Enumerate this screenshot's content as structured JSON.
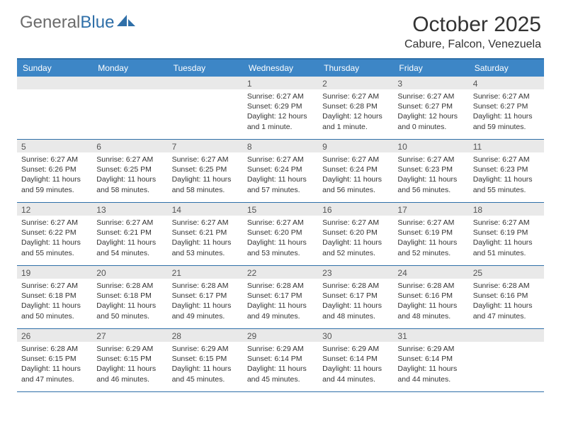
{
  "brand": {
    "part1": "General",
    "part2": "Blue"
  },
  "title": "October 2025",
  "location": "Cabure, Falcon, Venezuela",
  "colors": {
    "header_bg": "#3d86c6",
    "border": "#2f6fa8",
    "daynum_bg": "#e9e9e9",
    "text": "#333333",
    "logo_grey": "#6b6b6b",
    "logo_blue": "#2f6fa8"
  },
  "dow": [
    "Sunday",
    "Monday",
    "Tuesday",
    "Wednesday",
    "Thursday",
    "Friday",
    "Saturday"
  ],
  "weeks": [
    [
      {
        "n": "",
        "sr": "",
        "ss": "",
        "dl": ""
      },
      {
        "n": "",
        "sr": "",
        "ss": "",
        "dl": ""
      },
      {
        "n": "",
        "sr": "",
        "ss": "",
        "dl": ""
      },
      {
        "n": "1",
        "sr": "Sunrise: 6:27 AM",
        "ss": "Sunset: 6:29 PM",
        "dl": "Daylight: 12 hours and 1 minute."
      },
      {
        "n": "2",
        "sr": "Sunrise: 6:27 AM",
        "ss": "Sunset: 6:28 PM",
        "dl": "Daylight: 12 hours and 1 minute."
      },
      {
        "n": "3",
        "sr": "Sunrise: 6:27 AM",
        "ss": "Sunset: 6:27 PM",
        "dl": "Daylight: 12 hours and 0 minutes."
      },
      {
        "n": "4",
        "sr": "Sunrise: 6:27 AM",
        "ss": "Sunset: 6:27 PM",
        "dl": "Daylight: 11 hours and 59 minutes."
      }
    ],
    [
      {
        "n": "5",
        "sr": "Sunrise: 6:27 AM",
        "ss": "Sunset: 6:26 PM",
        "dl": "Daylight: 11 hours and 59 minutes."
      },
      {
        "n": "6",
        "sr": "Sunrise: 6:27 AM",
        "ss": "Sunset: 6:25 PM",
        "dl": "Daylight: 11 hours and 58 minutes."
      },
      {
        "n": "7",
        "sr": "Sunrise: 6:27 AM",
        "ss": "Sunset: 6:25 PM",
        "dl": "Daylight: 11 hours and 58 minutes."
      },
      {
        "n": "8",
        "sr": "Sunrise: 6:27 AM",
        "ss": "Sunset: 6:24 PM",
        "dl": "Daylight: 11 hours and 57 minutes."
      },
      {
        "n": "9",
        "sr": "Sunrise: 6:27 AM",
        "ss": "Sunset: 6:24 PM",
        "dl": "Daylight: 11 hours and 56 minutes."
      },
      {
        "n": "10",
        "sr": "Sunrise: 6:27 AM",
        "ss": "Sunset: 6:23 PM",
        "dl": "Daylight: 11 hours and 56 minutes."
      },
      {
        "n": "11",
        "sr": "Sunrise: 6:27 AM",
        "ss": "Sunset: 6:23 PM",
        "dl": "Daylight: 11 hours and 55 minutes."
      }
    ],
    [
      {
        "n": "12",
        "sr": "Sunrise: 6:27 AM",
        "ss": "Sunset: 6:22 PM",
        "dl": "Daylight: 11 hours and 55 minutes."
      },
      {
        "n": "13",
        "sr": "Sunrise: 6:27 AM",
        "ss": "Sunset: 6:21 PM",
        "dl": "Daylight: 11 hours and 54 minutes."
      },
      {
        "n": "14",
        "sr": "Sunrise: 6:27 AM",
        "ss": "Sunset: 6:21 PM",
        "dl": "Daylight: 11 hours and 53 minutes."
      },
      {
        "n": "15",
        "sr": "Sunrise: 6:27 AM",
        "ss": "Sunset: 6:20 PM",
        "dl": "Daylight: 11 hours and 53 minutes."
      },
      {
        "n": "16",
        "sr": "Sunrise: 6:27 AM",
        "ss": "Sunset: 6:20 PM",
        "dl": "Daylight: 11 hours and 52 minutes."
      },
      {
        "n": "17",
        "sr": "Sunrise: 6:27 AM",
        "ss": "Sunset: 6:19 PM",
        "dl": "Daylight: 11 hours and 52 minutes."
      },
      {
        "n": "18",
        "sr": "Sunrise: 6:27 AM",
        "ss": "Sunset: 6:19 PM",
        "dl": "Daylight: 11 hours and 51 minutes."
      }
    ],
    [
      {
        "n": "19",
        "sr": "Sunrise: 6:27 AM",
        "ss": "Sunset: 6:18 PM",
        "dl": "Daylight: 11 hours and 50 minutes."
      },
      {
        "n": "20",
        "sr": "Sunrise: 6:28 AM",
        "ss": "Sunset: 6:18 PM",
        "dl": "Daylight: 11 hours and 50 minutes."
      },
      {
        "n": "21",
        "sr": "Sunrise: 6:28 AM",
        "ss": "Sunset: 6:17 PM",
        "dl": "Daylight: 11 hours and 49 minutes."
      },
      {
        "n": "22",
        "sr": "Sunrise: 6:28 AM",
        "ss": "Sunset: 6:17 PM",
        "dl": "Daylight: 11 hours and 49 minutes."
      },
      {
        "n": "23",
        "sr": "Sunrise: 6:28 AM",
        "ss": "Sunset: 6:17 PM",
        "dl": "Daylight: 11 hours and 48 minutes."
      },
      {
        "n": "24",
        "sr": "Sunrise: 6:28 AM",
        "ss": "Sunset: 6:16 PM",
        "dl": "Daylight: 11 hours and 48 minutes."
      },
      {
        "n": "25",
        "sr": "Sunrise: 6:28 AM",
        "ss": "Sunset: 6:16 PM",
        "dl": "Daylight: 11 hours and 47 minutes."
      }
    ],
    [
      {
        "n": "26",
        "sr": "Sunrise: 6:28 AM",
        "ss": "Sunset: 6:15 PM",
        "dl": "Daylight: 11 hours and 47 minutes."
      },
      {
        "n": "27",
        "sr": "Sunrise: 6:29 AM",
        "ss": "Sunset: 6:15 PM",
        "dl": "Daylight: 11 hours and 46 minutes."
      },
      {
        "n": "28",
        "sr": "Sunrise: 6:29 AM",
        "ss": "Sunset: 6:15 PM",
        "dl": "Daylight: 11 hours and 45 minutes."
      },
      {
        "n": "29",
        "sr": "Sunrise: 6:29 AM",
        "ss": "Sunset: 6:14 PM",
        "dl": "Daylight: 11 hours and 45 minutes."
      },
      {
        "n": "30",
        "sr": "Sunrise: 6:29 AM",
        "ss": "Sunset: 6:14 PM",
        "dl": "Daylight: 11 hours and 44 minutes."
      },
      {
        "n": "31",
        "sr": "Sunrise: 6:29 AM",
        "ss": "Sunset: 6:14 PM",
        "dl": "Daylight: 11 hours and 44 minutes."
      },
      {
        "n": "",
        "sr": "",
        "ss": "",
        "dl": ""
      }
    ]
  ]
}
